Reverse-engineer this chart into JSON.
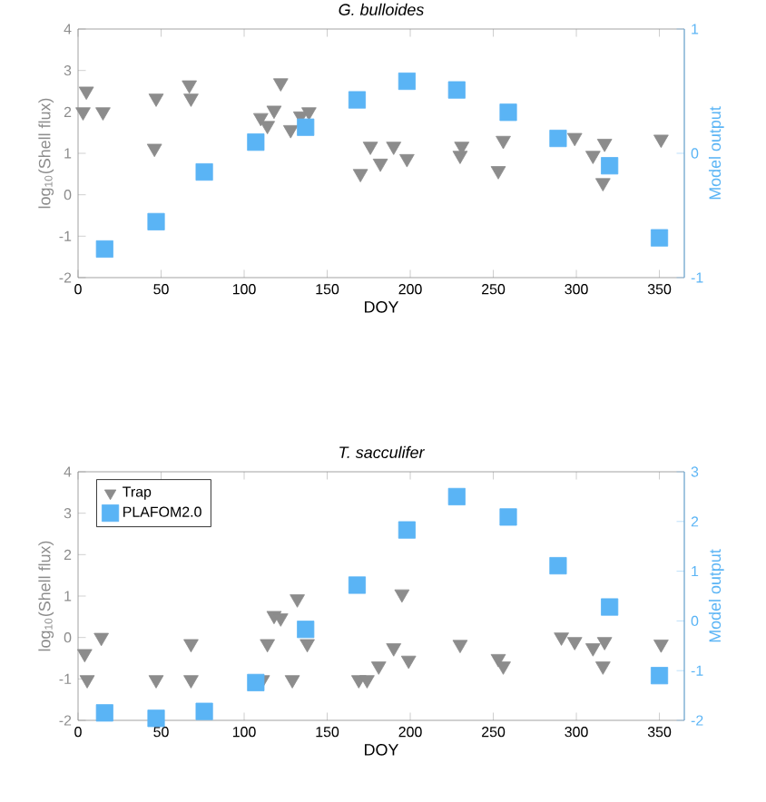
{
  "chart_data": [
    {
      "type": "scatter",
      "title": "G. bulloides",
      "xlabel": "DOY",
      "ylabel": "log$_{10}$(Shell flux)",
      "y2label": "Model output",
      "xlim": [
        0,
        365
      ],
      "xticks": [
        0,
        50,
        100,
        150,
        200,
        250,
        300,
        350
      ],
      "ylim": [
        -2,
        4
      ],
      "yticks": [
        -2,
        -1,
        0,
        1,
        2,
        3,
        4
      ],
      "y2lim": [
        -1,
        1
      ],
      "y2ticks": [
        -1,
        0,
        1
      ],
      "series": [
        {
          "color": "#8c8c8c",
          "marker": "triangle",
          "x": [
            5,
            3,
            15,
            47,
            46,
            67,
            68,
            122,
            110,
            118,
            114,
            128,
            134,
            139,
            170,
            176,
            182,
            190,
            198,
            230,
            231,
            253,
            256,
            299,
            310,
            317,
            316,
            351
          ],
          "values": [
            2.5,
            2.0,
            2.0,
            2.33,
            1.12,
            2.65,
            2.33,
            2.7,
            1.86,
            2.04,
            1.67,
            1.57,
            1.9,
            2.0,
            0.51,
            1.17,
            0.76,
            1.17,
            0.87,
            0.95,
            1.17,
            0.58,
            1.31,
            1.38,
            0.95,
            1.24,
            0.29,
            1.34
          ]
        },
        {
          "color": "#5ab4f5",
          "marker": "square",
          "axis": "y2",
          "x": [
            16,
            47,
            76,
            107,
            137,
            168,
            198,
            228,
            259,
            289,
            320,
            350
          ],
          "values": [
            -0.77,
            -0.55,
            -0.15,
            0.09,
            0.21,
            0.43,
            0.58,
            0.51,
            0.33,
            0.12,
            -0.1,
            -0.68
          ]
        }
      ]
    },
    {
      "type": "scatter",
      "title": "T. sacculifer",
      "xlabel": "DOY",
      "ylabel": "log$_{10}$(Shell flux)",
      "y2label": "Model output",
      "xlim": [
        0,
        365
      ],
      "xticks": [
        0,
        50,
        100,
        150,
        200,
        250,
        300,
        350
      ],
      "ylim": [
        -2,
        4
      ],
      "yticks": [
        -2,
        -1,
        0,
        1,
        2,
        3,
        4
      ],
      "y2lim": [
        -2,
        3
      ],
      "y2ticks": [
        -2,
        -1,
        0,
        1,
        2,
        3
      ],
      "legend": "top left",
      "series": [
        {
          "name": "Trap",
          "color": "#8c8c8c",
          "marker": "triangle",
          "x": [
            4,
            5.5,
            14,
            47,
            68,
            68,
            114,
            111,
            118,
            122,
            129,
            132,
            138,
            169,
            174,
            181,
            190,
            195,
            199,
            230,
            253,
            256,
            291,
            299,
            310,
            317,
            316,
            351
          ],
          "values": [
            -0.39,
            -1.02,
            0.0,
            -1.02,
            -0.15,
            -1.02,
            -0.15,
            -1.02,
            0.53,
            0.47,
            -1.02,
            0.93,
            -0.15,
            -1.02,
            -1.02,
            -0.69,
            -0.25,
            1.05,
            -0.55,
            -0.17,
            -0.51,
            -0.69,
            0.01,
            -0.1,
            -0.25,
            -0.1,
            -0.69,
            -0.16
          ]
        },
        {
          "name": "PLAFOM2.0",
          "color": "#5ab4f5",
          "marker": "square",
          "axis": "y2",
          "x": [
            16,
            47,
            76,
            107,
            137,
            168,
            198,
            228,
            259,
            289,
            320,
            350
          ],
          "values": [
            -1.85,
            -1.96,
            -1.82,
            -1.24,
            -0.17,
            0.72,
            1.83,
            2.5,
            2.09,
            1.11,
            0.28,
            -1.1
          ]
        }
      ]
    }
  ]
}
